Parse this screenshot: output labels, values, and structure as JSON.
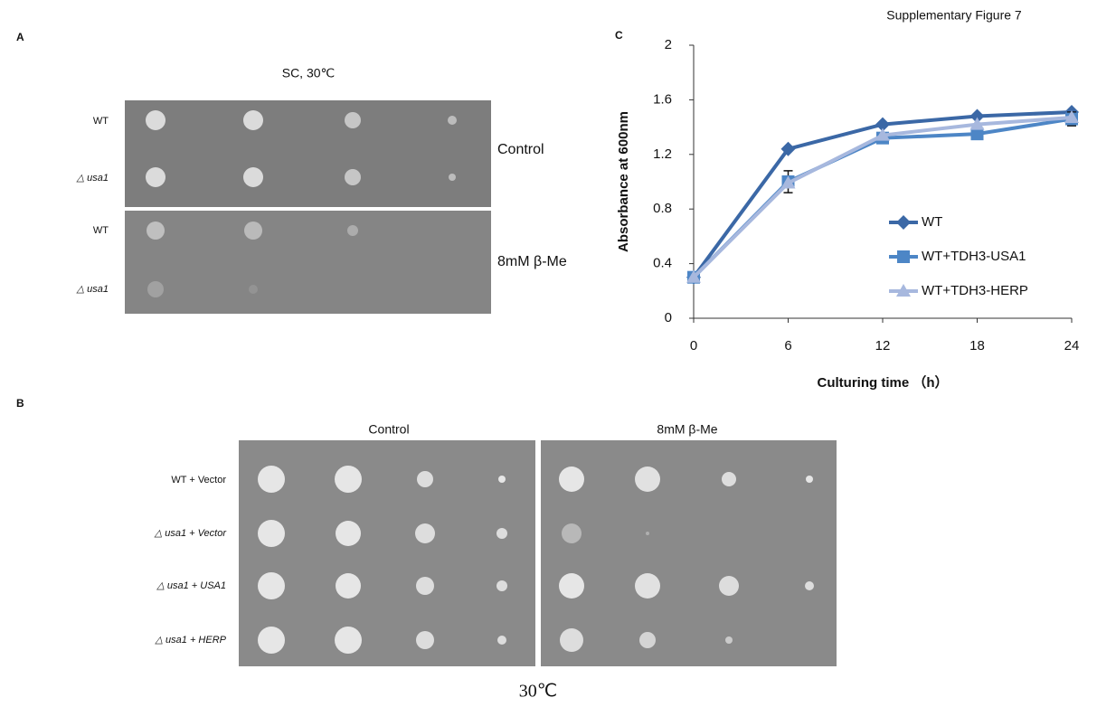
{
  "title": "Supplementary Figure 7",
  "panel_a": {
    "label": "A",
    "condition": "SC, 30℃",
    "rows": [
      "WT",
      "△ usa1",
      "WT",
      "△ usa1"
    ],
    "treatments": [
      "Control",
      "8mM β-Me"
    ]
  },
  "panel_b": {
    "label": "B",
    "columns": [
      "Control",
      "8mM β-Me"
    ],
    "rows": [
      "WT + Vector",
      "△ usa1 + Vector",
      "△ usa1 + USA1",
      "△ usa1 + HERP"
    ],
    "footer": "30℃"
  },
  "panel_c": {
    "label": "C"
  },
  "chart_data": {
    "type": "line",
    "x_label": "Culturing time （h）",
    "y_label": "Absorbance at 600nm",
    "x": [
      0,
      6,
      12,
      18,
      24
    ],
    "series": [
      {
        "name": "WT",
        "color": "#3b68a6",
        "marker": "diamond",
        "values": [
          0.3,
          1.24,
          1.42,
          1.48,
          1.51
        ]
      },
      {
        "name": "WT+TDH3-USA1",
        "color": "#4d86c6",
        "marker": "square",
        "values": [
          0.3,
          1.0,
          1.32,
          1.35,
          1.46
        ],
        "errors": [
          0.02,
          0.08,
          0.02,
          0.02,
          0.05
        ]
      },
      {
        "name": "WT+TDH3-HERP",
        "color": "#a7b8de",
        "marker": "triangle",
        "values": [
          0.3,
          0.99,
          1.34,
          1.42,
          1.47
        ]
      }
    ],
    "xlim": [
      0,
      24
    ],
    "xticks": [
      0,
      6,
      12,
      18,
      24
    ],
    "ylim": [
      0,
      2
    ],
    "yticks": [
      0,
      0.4,
      0.8,
      1.2,
      1.6,
      2
    ],
    "legend": "right"
  }
}
